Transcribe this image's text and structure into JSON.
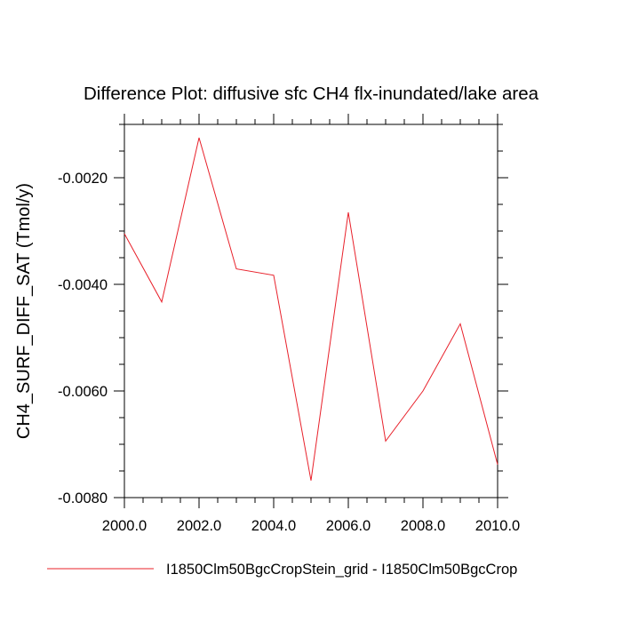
{
  "chart_data": {
    "type": "line",
    "title": "Difference Plot: diffusive sfc CH4 flx-inundated/lake area",
    "xlabel": "",
    "ylabel": "CH4_SURF_DIFF_SAT  (Tmol/y)",
    "xlim": [
      2000,
      2010
    ],
    "ylim": [
      -0.008,
      -0.001
    ],
    "x_ticks": [
      2000,
      2002,
      2004,
      2006,
      2008,
      2010
    ],
    "x_tick_labels": [
      "2000.0",
      "2002.0",
      "2004.0",
      "2006.0",
      "2008.0",
      "2010.0"
    ],
    "y_ticks": [
      -0.002,
      -0.004,
      -0.006,
      -0.008
    ],
    "y_tick_labels": [
      "-0.0020",
      "-0.0040",
      "-0.0060",
      "-0.0080"
    ],
    "grid": false,
    "legend_position": "bottom",
    "series": [
      {
        "name": "I1850Clm50BgcCropStein_grid - I1850Clm50BgcCrop",
        "color": "#e8202a",
        "x": [
          2000,
          2001,
          2002,
          2003,
          2004,
          2005,
          2006,
          2007,
          2008,
          2009,
          2010
        ],
        "values": [
          -0.00305,
          -0.00433,
          -0.00125,
          -0.00371,
          -0.00383,
          -0.00768,
          -0.00265,
          -0.00694,
          -0.006,
          -0.00474,
          -0.00738
        ]
      }
    ]
  }
}
